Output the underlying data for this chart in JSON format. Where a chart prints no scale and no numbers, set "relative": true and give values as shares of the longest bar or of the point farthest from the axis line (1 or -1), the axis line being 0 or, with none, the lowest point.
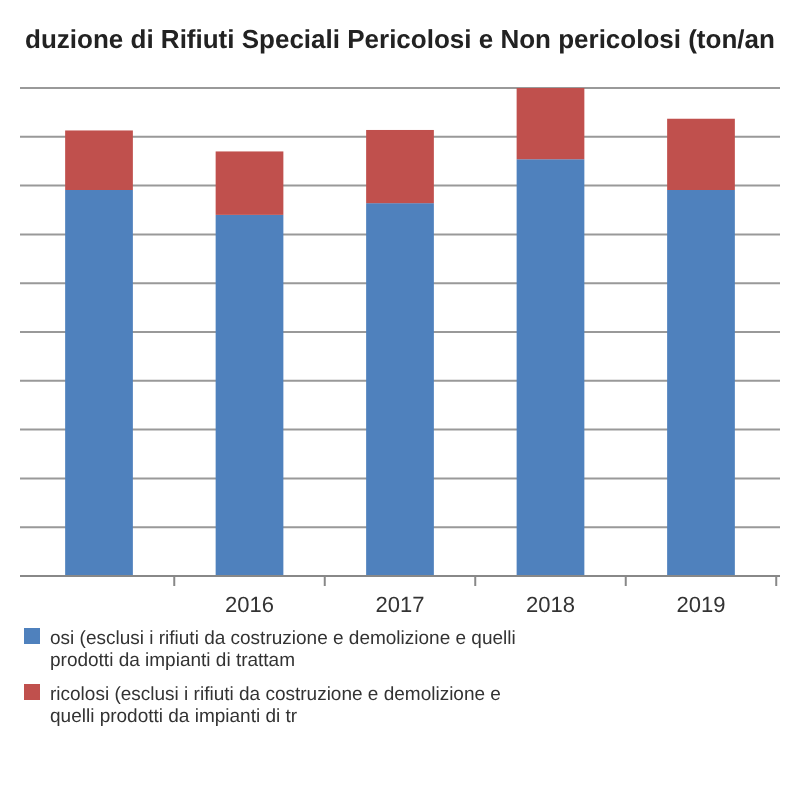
{
  "chart_data": {
    "type": "bar",
    "title": "duzione di Rifiuti Speciali Pericolosi e Non pericolosi (ton/an",
    "categories": [
      null,
      "2016",
      "2017",
      "2018",
      "2019"
    ],
    "stacked": true,
    "relative": true,
    "grid": "y",
    "legend": "bottom",
    "series": [
      {
        "name": "osi (esclusi i rifiuti da costruzione e demolizione e quelli prodotti da impianti di trattam",
        "color": "#4f81bd",
        "values": [
          0.791,
          0.74,
          0.764,
          0.854,
          0.791
        ]
      },
      {
        "name": "ricolosi (esclusi i rifiuti da costruzione e demolizione e quelli prodotti da impianti di tr",
        "color": "#c0504d",
        "values": [
          0.122,
          0.13,
          0.15,
          0.146,
          0.146
        ]
      }
    ]
  }
}
